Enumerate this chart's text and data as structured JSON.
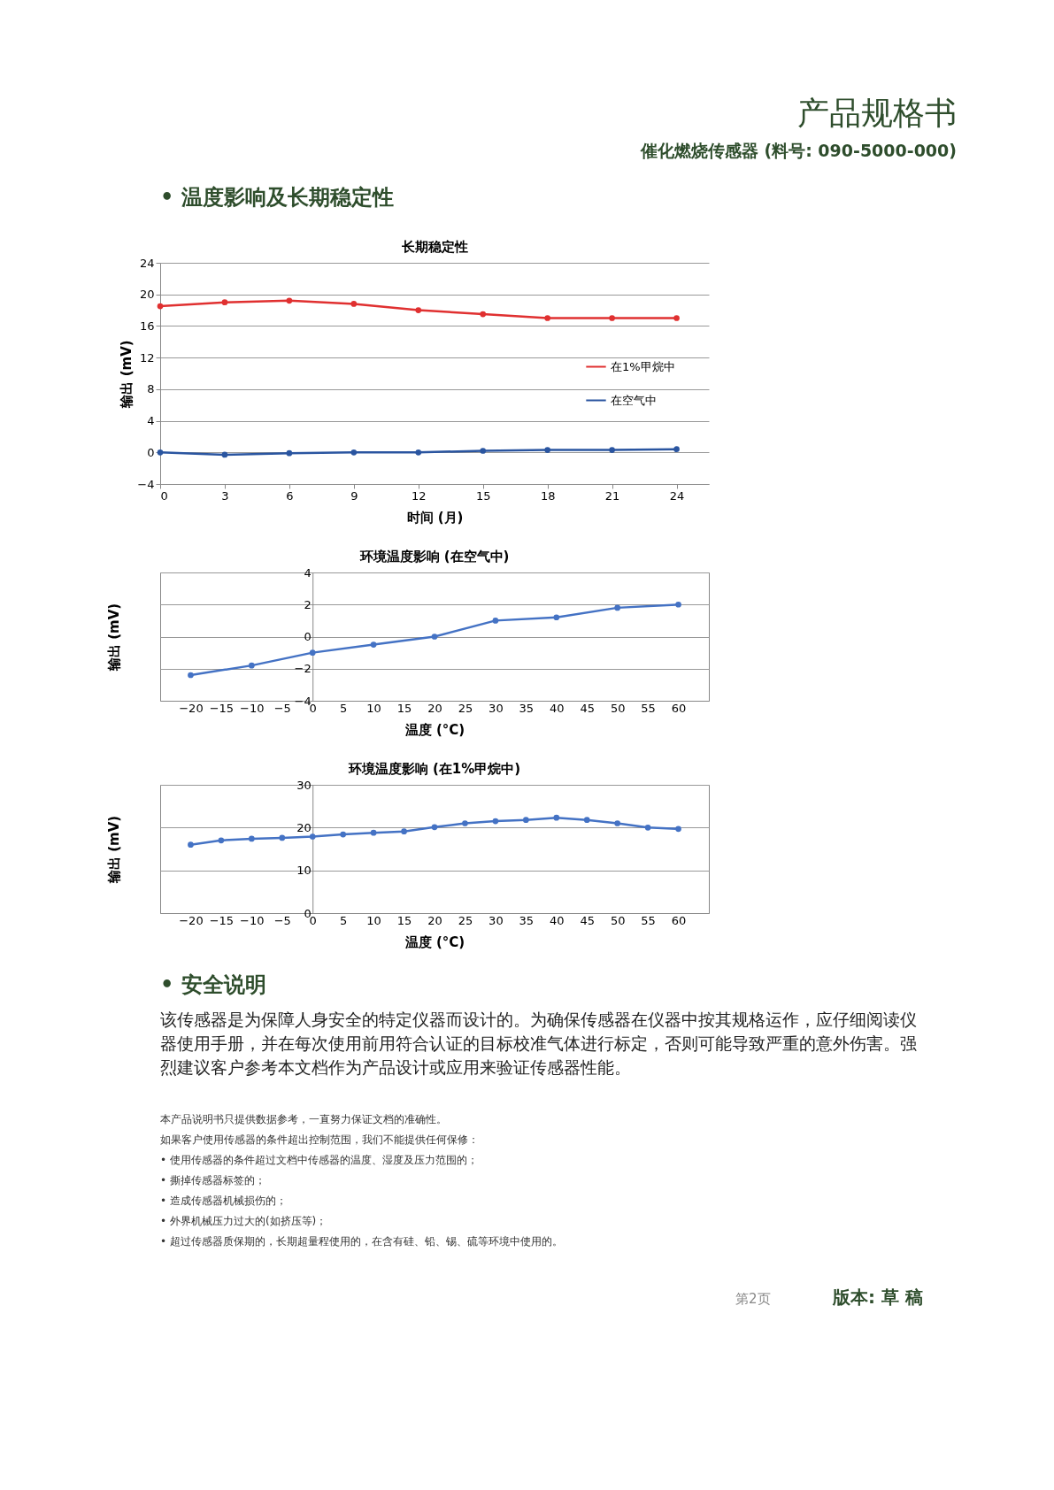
{
  "chart_data": [
    {
      "type": "line",
      "title": "长期稳定性",
      "xlabel": "时间 (月)",
      "ylabel": "输出 (mV)",
      "x": [
        0,
        3,
        6,
        9,
        12,
        15,
        18,
        21,
        24
      ],
      "series": [
        {
          "name": "在1%甲烷中",
          "color": "#e03030",
          "values": [
            18.5,
            19.0,
            19.2,
            18.8,
            18.0,
            17.5,
            17.0,
            17.0,
            17.0
          ]
        },
        {
          "name": "在空气中",
          "color": "#2a55a0",
          "values": [
            0.0,
            -0.3,
            -0.1,
            0.0,
            0.0,
            0.2,
            0.3,
            0.3,
            0.4
          ]
        }
      ],
      "xlim": [
        0,
        25.5
      ],
      "xticks": [
        0,
        3,
        6,
        9,
        12,
        15,
        18,
        21,
        24
      ],
      "ylim": [
        -4,
        24
      ],
      "yticks": [
        -4,
        0,
        4,
        8,
        12,
        16,
        20,
        24
      ],
      "grid": "y",
      "legend": "right",
      "marker": "circle",
      "line_style": "solid",
      "annotations": [
        "产品规格书",
        "催化燃烧传感器 (料号: 090-5000-000)",
        "• 温度影响及长期稳定性"
      ]
    },
    {
      "type": "line",
      "title": "环境温度影响 (在空气中)",
      "xlabel": "温度 (°C)",
      "ylabel": "输出 (mV)",
      "x": [
        -20,
        -10,
        0,
        10,
        20,
        30,
        40,
        50,
        60
      ],
      "series": [
        {
          "color": "#4472c4",
          "values": [
            -2.4,
            -1.8,
            -1.0,
            -0.5,
            0.0,
            1.0,
            1.2,
            1.8,
            2.0
          ]
        }
      ],
      "xlim": [
        -25,
        65
      ],
      "xticks": [
        -20,
        -15,
        -10,
        -5,
        0,
        5,
        10,
        15,
        20,
        25,
        30,
        35,
        40,
        45,
        50,
        55,
        60
      ],
      "ylim": [
        -4,
        4
      ],
      "yticks": [
        -4,
        -2,
        0,
        2,
        4
      ],
      "grid": "y",
      "marker": "circle",
      "line_style": "solid"
    },
    {
      "type": "line",
      "title": "环境温度影响 (在1%甲烷中)",
      "xlabel": "温度 (°C)",
      "ylabel": "输出 (mV)",
      "x": [
        -20,
        -15,
        -10,
        -5,
        0,
        5,
        10,
        15,
        20,
        25,
        30,
        35,
        40,
        45,
        50,
        55,
        60
      ],
      "series": [
        {
          "color": "#4472c4",
          "values": [
            16.0,
            17.0,
            17.4,
            17.6,
            17.9,
            18.4,
            18.8,
            19.1,
            20.1,
            21.0,
            21.5,
            21.8,
            22.3,
            21.8,
            21.0,
            20.0,
            19.7
          ]
        }
      ],
      "xlim": [
        -25,
        65
      ],
      "xticks": [
        -20,
        -15,
        -10,
        -5,
        0,
        5,
        10,
        15,
        20,
        25,
        30,
        35,
        40,
        45,
        50,
        55,
        60
      ],
      "ylim": [
        0,
        30
      ],
      "yticks": [
        0,
        10,
        20,
        30
      ],
      "grid": "y",
      "marker": "circle",
      "line_style": "solid",
      "annotations": [
        "• 安全说明",
        "该传感器是为保障人身安全的特定仪器而设计的。为确保传感器在仪器中按其规格运作，应仔细阅读仪器使用手册，并在每次使用前用符合认证的目标校准气体进行标定，否则可能导致严重的意外伤害。强烈建议客户参考本文档作为产品设计或应用来验证传感器性能。",
        "本产品说明书只提供数据参考，一直努力保证文档的准确性。",
        "如果客户使用传感器的条件超出控制范围，我们不能提供任何保修：",
        "• 使用传感器的条件超过文档中传感器的温度、湿度及压力范围的；",
        "• 撕掉传感器标签的；",
        "• 造成传感器机械损伤的；",
        "• 外界机械压力过大的(如挤压等)；",
        "• 超过传感器质保期的，长期超量程使用的，在含有硅、铅、锡、硫等环境中使用的。",
        "第2页",
        "版本: 草 稿"
      ]
    }
  ]
}
